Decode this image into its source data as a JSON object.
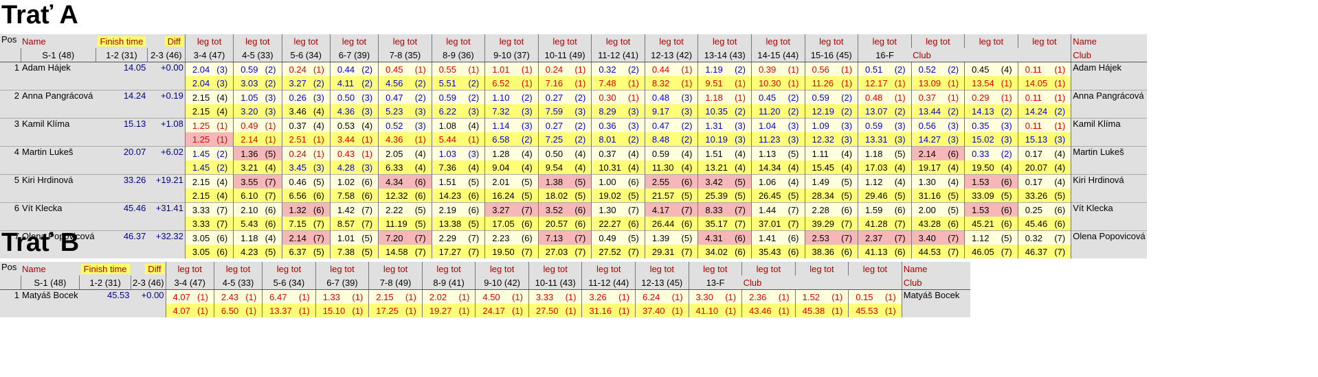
{
  "header": {
    "pos": "Pos",
    "name": "Name",
    "club": "Club",
    "finish_time": "Finish time",
    "diff": "Diff",
    "leg_tot": "leg tot"
  },
  "courses": [
    {
      "title": "Trať A",
      "legs": [
        "S-1 (48)",
        "1-2 (31)",
        "2-3 (46)",
        "3-4 (47)",
        "4-5 (33)",
        "5-6 (34)",
        "6-7 (39)",
        "7-8 (35)",
        "8-9 (36)",
        "9-10 (37)",
        "10-11 (49)",
        "11-12 (41)",
        "12-13 (42)",
        "13-14 (43)",
        "14-15 (44)",
        "15-16 (45)",
        "16-F"
      ],
      "runners": [
        {
          "pos": "1",
          "name": "Adam Hájek",
          "finish": "14.05",
          "diff": "+0.00",
          "leg": [
            "2.04",
            "0.59",
            "0.24",
            "0.44",
            "0.45",
            "0.55",
            "1.01",
            "0.24",
            "0.32",
            "0.44",
            "1.19",
            "0.39",
            "0.56",
            "0.51",
            "0.52",
            "0.45",
            "0.11"
          ],
          "legrk": [
            "(3)",
            "(2)",
            "(1)",
            "(2)",
            "(1)",
            "(1)",
            "(1)",
            "(1)",
            "(2)",
            "(1)",
            "(2)",
            "(1)",
            "(1)",
            "(2)",
            "(2)",
            "(4)",
            "(1)"
          ],
          "tot": [
            "2.04",
            "3.03",
            "3.27",
            "4.11",
            "4.56",
            "5.51",
            "6.52",
            "7.16",
            "7.48",
            "8.32",
            "9.51",
            "10.30",
            "11.26",
            "12.17",
            "13.09",
            "13.54",
            "14.05"
          ],
          "totrk": [
            "(3)",
            "(2)",
            "(2)",
            "(2)",
            "(2)",
            "(2)",
            "(1)",
            "(1)",
            "(1)",
            "(1)",
            "(1)",
            "(1)",
            "(1)",
            "(1)",
            "(1)",
            "(1)",
            "(1)"
          ]
        },
        {
          "pos": "2",
          "name": "Anna Pangrácová",
          "finish": "14.24",
          "diff": "+0.19",
          "leg": [
            "2.15",
            "1.05",
            "0.26",
            "0.50",
            "0.47",
            "0.59",
            "1.10",
            "0.27",
            "0.30",
            "0.48",
            "1.18",
            "0.45",
            "0.59",
            "0.48",
            "0.37",
            "0.29",
            "0.11"
          ],
          "legrk": [
            "(4)",
            "(3)",
            "(3)",
            "(3)",
            "(2)",
            "(2)",
            "(2)",
            "(2)",
            "(1)",
            "(3)",
            "(1)",
            "(2)",
            "(2)",
            "(1)",
            "(1)",
            "(1)",
            "(1)"
          ],
          "tot": [
            "2.15",
            "3.20",
            "3.46",
            "4.36",
            "5.23",
            "6.22",
            "7.32",
            "7.59",
            "8.29",
            "9.17",
            "10.35",
            "11.20",
            "12.19",
            "13.07",
            "13.44",
            "14.13",
            "14.24"
          ],
          "totrk": [
            "(4)",
            "(3)",
            "(4)",
            "(3)",
            "(3)",
            "(3)",
            "(3)",
            "(3)",
            "(3)",
            "(3)",
            "(2)",
            "(2)",
            "(2)",
            "(2)",
            "(2)",
            "(2)",
            "(2)"
          ]
        },
        {
          "pos": "3",
          "name": "Kamil Klíma",
          "finish": "15.13",
          "diff": "+1.08",
          "leg": [
            "1.25",
            "0.49",
            "0.37",
            "0.53",
            "0.52",
            "1.08",
            "1.14",
            "0.27",
            "0.36",
            "0.47",
            "1.31",
            "1.04",
            "1.09",
            "0.59",
            "0.56",
            "0.35",
            "0.11"
          ],
          "legrk": [
            "(1)",
            "(1)",
            "(4)",
            "(4)",
            "(3)",
            "(4)",
            "(3)",
            "(2)",
            "(3)",
            "(2)",
            "(3)",
            "(3)",
            "(3)",
            "(3)",
            "(3)",
            "(3)",
            "(1)"
          ],
          "tot": [
            "1.25",
            "2.14",
            "2.51",
            "3.44",
            "4.36",
            "5.44",
            "6.58",
            "7.25",
            "8.01",
            "8.48",
            "10.19",
            "11.23",
            "12.32",
            "13.31",
            "14.27",
            "15.02",
            "15.13"
          ],
          "totrk": [
            "(1)",
            "(1)",
            "(1)",
            "(1)",
            "(1)",
            "(1)",
            "(2)",
            "(2)",
            "(2)",
            "(2)",
            "(3)",
            "(3)",
            "(3)",
            "(3)",
            "(3)",
            "(3)",
            "(3)"
          ]
        },
        {
          "pos": "4",
          "name": "Martin Lukeš",
          "finish": "20.07",
          "diff": "+6.02",
          "leg": [
            "1.45",
            "1.36",
            "0.24",
            "0.43",
            "2.05",
            "1.03",
            "1.28",
            "0.50",
            "0.37",
            "0.59",
            "1.51",
            "1.13",
            "1.11",
            "1.18",
            "2.14",
            "0.33",
            "0.17"
          ],
          "legrk": [
            "(2)",
            "(5)",
            "(1)",
            "(1)",
            "(4)",
            "(3)",
            "(4)",
            "(4)",
            "(4)",
            "(4)",
            "(4)",
            "(5)",
            "(4)",
            "(5)",
            "(6)",
            "(2)",
            "(4)"
          ],
          "tot": [
            "1.45",
            "3.21",
            "3.45",
            "4.28",
            "6.33",
            "7.36",
            "9.04",
            "9.54",
            "10.31",
            "11.30",
            "13.21",
            "14.34",
            "15.45",
            "17.03",
            "19.17",
            "19.50",
            "20.07"
          ],
          "totrk": [
            "(2)",
            "(4)",
            "(3)",
            "(3)",
            "(4)",
            "(4)",
            "(4)",
            "(4)",
            "(4)",
            "(4)",
            "(4)",
            "(4)",
            "(4)",
            "(4)",
            "(4)",
            "(4)",
            "(4)"
          ]
        },
        {
          "pos": "5",
          "name": "Kiri Hrdinová",
          "finish": "33.26",
          "diff": "+19.21",
          "leg": [
            "2.15",
            "3.55",
            "0.46",
            "1.02",
            "4.34",
            "1.51",
            "2.01",
            "1.38",
            "1.00",
            "2.55",
            "3.42",
            "1.06",
            "1.49",
            "1.12",
            "1.30",
            "1.53",
            "0.17"
          ],
          "legrk": [
            "(4)",
            "(7)",
            "(5)",
            "(6)",
            "(6)",
            "(5)",
            "(5)",
            "(5)",
            "(6)",
            "(6)",
            "(5)",
            "(4)",
            "(5)",
            "(4)",
            "(4)",
            "(6)",
            "(4)"
          ],
          "tot": [
            "2.15",
            "6.10",
            "6.56",
            "7.58",
            "12.32",
            "14.23",
            "16.24",
            "18.02",
            "19.02",
            "21.57",
            "25.39",
            "26.45",
            "28.34",
            "29.46",
            "31.16",
            "33.09",
            "33.26"
          ],
          "totrk": [
            "(4)",
            "(7)",
            "(6)",
            "(6)",
            "(6)",
            "(6)",
            "(5)",
            "(5)",
            "(5)",
            "(5)",
            "(5)",
            "(5)",
            "(5)",
            "(5)",
            "(5)",
            "(5)",
            "(5)"
          ]
        },
        {
          "pos": "6",
          "name": "Vít Klecka",
          "finish": "45.46",
          "diff": "+31.41",
          "leg": [
            "3.33",
            "2.10",
            "1.32",
            "1.42",
            "2.22",
            "2.19",
            "3.27",
            "3.52",
            "1.30",
            "4.17",
            "8.33",
            "1.44",
            "2.28",
            "1.59",
            "2.00",
            "1.53",
            "0.25"
          ],
          "legrk": [
            "(7)",
            "(6)",
            "(6)",
            "(7)",
            "(5)",
            "(6)",
            "(7)",
            "(6)",
            "(7)",
            "(7)",
            "(7)",
            "(7)",
            "(6)",
            "(6)",
            "(5)",
            "(6)",
            "(6)"
          ],
          "tot": [
            "3.33",
            "5.43",
            "7.15",
            "8.57",
            "11.19",
            "13.38",
            "17.05",
            "20.57",
            "22.27",
            "26.44",
            "35.17",
            "37.01",
            "39.29",
            "41.28",
            "43.28",
            "45.21",
            "45.46"
          ],
          "totrk": [
            "(7)",
            "(6)",
            "(7)",
            "(7)",
            "(5)",
            "(5)",
            "(6)",
            "(6)",
            "(6)",
            "(6)",
            "(7)",
            "(7)",
            "(7)",
            "(7)",
            "(6)",
            "(6)",
            "(6)"
          ]
        },
        {
          "pos": "7",
          "name": "Olena Popovicová",
          "finish": "46.37",
          "diff": "+32.32",
          "leg": [
            "3.05",
            "1.18",
            "2.14",
            "1.01",
            "7.20",
            "2.29",
            "2.23",
            "7.13",
            "0.49",
            "1.39",
            "4.31",
            "1.41",
            "2.53",
            "2.37",
            "3.40",
            "1.12",
            "0.32"
          ],
          "legrk": [
            "(6)",
            "(4)",
            "(7)",
            "(5)",
            "(7)",
            "(7)",
            "(6)",
            "(7)",
            "(5)",
            "(5)",
            "(6)",
            "(6)",
            "(7)",
            "(7)",
            "(7)",
            "(5)",
            "(7)"
          ],
          "tot": [
            "3.05",
            "4.23",
            "6.37",
            "7.38",
            "14.58",
            "17.27",
            "19.50",
            "27.03",
            "27.52",
            "29.31",
            "34.02",
            "35.43",
            "38.36",
            "41.13",
            "44.53",
            "46.05",
            "46.37"
          ],
          "totrk": [
            "(6)",
            "(5)",
            "(5)",
            "(5)",
            "(7)",
            "(7)",
            "(7)",
            "(7)",
            "(7)",
            "(7)",
            "(6)",
            "(6)",
            "(6)",
            "(6)",
            "(7)",
            "(7)",
            "(7)"
          ]
        }
      ]
    },
    {
      "title": "Trať B",
      "legs": [
        "S-1 (48)",
        "1-2 (31)",
        "2-3 (46)",
        "3-4 (47)",
        "4-5 (33)",
        "5-6 (34)",
        "6-7 (39)",
        "7-8 (49)",
        "8-9 (41)",
        "9-10 (42)",
        "10-11 (43)",
        "11-12 (44)",
        "12-13 (45)",
        "13-F"
      ],
      "runners": [
        {
          "pos": "1",
          "name": "Matyáš Bocek",
          "finish": "45.53",
          "diff": "+0.00",
          "leg": [
            "4.07",
            "2.43",
            "6.47",
            "1.33",
            "2.15",
            "2.02",
            "4.50",
            "3.33",
            "3.26",
            "6.24",
            "3.30",
            "2.36",
            "1.52",
            "0.15"
          ],
          "legrk": [
            "(1)",
            "(1)",
            "(1)",
            "(1)",
            "(1)",
            "(1)",
            "(1)",
            "(1)",
            "(1)",
            "(1)",
            "(1)",
            "(1)",
            "(1)",
            "(1)"
          ],
          "tot": [
            "4.07",
            "6.50",
            "13.37",
            "15.10",
            "17.25",
            "19.27",
            "24.17",
            "27.50",
            "31.16",
            "37.40",
            "41.10",
            "43.46",
            "45.38",
            "45.53"
          ],
          "totrk": [
            "(1)",
            "(1)",
            "(1)",
            "(1)",
            "(1)",
            "(1)",
            "(1)",
            "(1)",
            "(1)",
            "(1)",
            "(1)",
            "(1)",
            "(1)",
            "(1)"
          ]
        }
      ]
    }
  ]
}
